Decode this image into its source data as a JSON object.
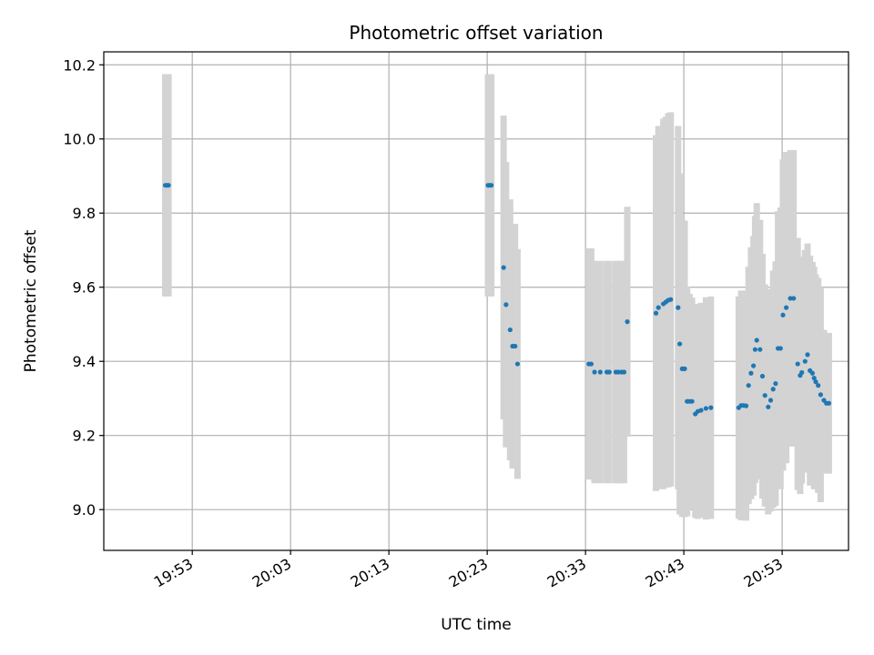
{
  "chart_data": {
    "type": "scatter",
    "title": "Photometric offset variation",
    "xlabel": "UTC time",
    "ylabel": "Photometric offset",
    "x_unit": "UTC time (HH:MM:SS)",
    "xlim": [
      "19:44:00",
      "20:59:45"
    ],
    "ylim": [
      8.89,
      10.235
    ],
    "grid": true,
    "xticks": [
      "19:53",
      "20:03",
      "20:13",
      "20:23",
      "20:33",
      "20:43",
      "20:53"
    ],
    "yticks": [
      "9.0",
      "9.2",
      "9.4",
      "9.6",
      "9.8",
      "10.0",
      "10.2"
    ],
    "point_color": "#1f77b4",
    "errorbar_color": "#d3d3d3",
    "series": [
      {
        "x": [
          "19:50:15",
          "19:50:25",
          "19:50:35",
          "20:23:05",
          "20:23:15",
          "20:23:25",
          "20:24:40",
          "20:24:55",
          "20:25:20",
          "20:25:35",
          "20:25:50",
          "20:26:05",
          "20:33:20",
          "20:33:35",
          "20:33:55",
          "20:34:30",
          "20:35:10",
          "20:35:25",
          "20:36:05",
          "20:36:20",
          "20:36:40",
          "20:36:55",
          "20:37:15",
          "20:40:10",
          "20:40:25",
          "20:40:55",
          "20:41:10",
          "20:41:25",
          "20:41:40",
          "20:42:25",
          "20:42:35",
          "20:42:50",
          "20:43:05",
          "20:43:20",
          "20:43:35",
          "20:43:50",
          "20:44:10",
          "20:44:25",
          "20:44:45",
          "20:45:15",
          "20:45:45",
          "20:48:35",
          "20:48:50",
          "20:49:05",
          "20:49:20",
          "20:49:35",
          "20:49:50",
          "20:50:05",
          "20:50:15",
          "20:50:25",
          "20:50:45",
          "20:51:00",
          "20:51:15",
          "20:51:35",
          "20:51:50",
          "20:52:05",
          "20:52:20",
          "20:52:35",
          "20:52:50",
          "20:53:05",
          "20:53:25",
          "20:53:50",
          "20:54:10",
          "20:54:35",
          "20:54:50",
          "20:55:00",
          "20:55:20",
          "20:55:35",
          "20:55:50",
          "20:56:05",
          "20:56:15",
          "20:56:25",
          "20:56:40",
          "20:56:55",
          "20:57:15",
          "20:57:30",
          "20:57:45"
        ],
        "y": [
          9.875,
          9.875,
          9.875,
          9.875,
          9.875,
          9.875,
          9.653,
          9.553,
          9.485,
          9.441,
          9.441,
          9.393,
          9.393,
          9.393,
          9.371,
          9.371,
          9.371,
          9.371,
          9.371,
          9.371,
          9.371,
          9.371,
          9.507,
          9.53,
          9.545,
          9.555,
          9.56,
          9.565,
          9.567,
          9.545,
          9.447,
          9.38,
          9.38,
          9.292,
          9.292,
          9.292,
          9.258,
          9.265,
          9.268,
          9.273,
          9.275,
          9.275,
          9.281,
          9.281,
          9.28,
          9.335,
          9.368,
          9.388,
          9.432,
          9.457,
          9.432,
          9.36,
          9.308,
          9.277,
          9.295,
          9.325,
          9.34,
          9.435,
          9.435,
          9.525,
          9.545,
          9.57,
          9.57,
          9.393,
          9.362,
          9.37,
          9.4,
          9.418,
          9.375,
          9.368,
          9.355,
          9.345,
          9.335,
          9.31,
          9.295,
          9.287,
          9.287
        ],
        "yerr": [
          0.3,
          0.3,
          0.3,
          0.3,
          0.3,
          0.3,
          0.41,
          0.385,
          0.352,
          0.33,
          0.33,
          0.31,
          0.312,
          0.312,
          0.3,
          0.3,
          0.3,
          0.3,
          0.3,
          0.3,
          0.3,
          0.3,
          0.31,
          0.48,
          0.49,
          0.5,
          0.5,
          0.505,
          0.505,
          0.49,
          0.46,
          0.4,
          0.4,
          0.31,
          0.29,
          0.28,
          0.28,
          0.29,
          0.29,
          0.3,
          0.3,
          0.3,
          0.31,
          0.31,
          0.31,
          0.32,
          0.34,
          0.35,
          0.36,
          0.37,
          0.35,
          0.33,
          0.3,
          0.29,
          0.3,
          0.32,
          0.33,
          0.37,
          0.38,
          0.42,
          0.42,
          0.4,
          0.4,
          0.34,
          0.32,
          0.3,
          0.3,
          0.3,
          0.31,
          0.3,
          0.3,
          0.29,
          0.29,
          0.29,
          0.19,
          0.19,
          0.19
        ]
      }
    ]
  }
}
